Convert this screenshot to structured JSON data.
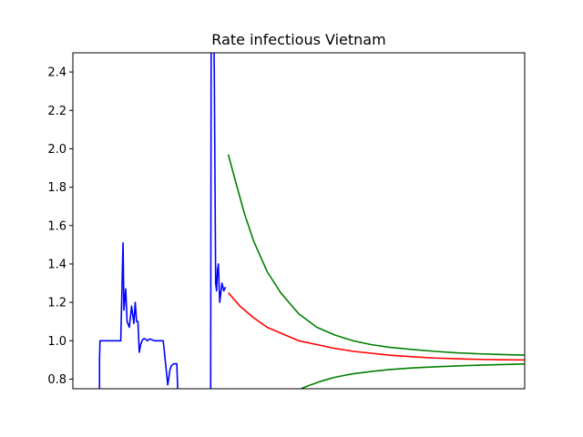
{
  "chart_data": {
    "type": "line",
    "title": "Rate infectious Vietnam",
    "xlabel": "",
    "ylabel": "",
    "xlim": [
      0,
      100
    ],
    "ylim": [
      0.75,
      2.5
    ],
    "yticks": [
      0.8,
      1.0,
      1.2,
      1.4,
      1.6,
      1.8,
      2.0,
      2.2,
      2.4
    ],
    "ytick_labels": [
      "0.8",
      "1.0",
      "1.2",
      "1.4",
      "1.6",
      "1.8",
      "2.0",
      "2.2",
      "2.4"
    ],
    "show_xticks": false,
    "grid": false,
    "legend": "none",
    "series": [
      {
        "color": "#0000ff",
        "x": [
          5.9,
          5.9,
          6.0,
          10.5,
          10.6,
          11.1,
          11.3,
          11.7,
          12.0,
          12.5,
          13.0,
          13.5,
          13.8,
          14.1,
          14.4,
          14.7,
          15.0,
          15.3,
          15.6,
          16.0,
          16.5,
          17.0,
          18.0,
          19.0,
          20.0,
          21.0,
          21.5,
          21.8,
          22.3,
          23.0,
          23.2
        ],
        "y": [
          0.75,
          0.9,
          1.0,
          1.0,
          1.0,
          1.51,
          1.16,
          1.27,
          1.1,
          1.07,
          1.18,
          1.09,
          1.2,
          1.1,
          1.1,
          0.94,
          0.98,
          1.0,
          1.01,
          1.01,
          1.0,
          1.01,
          1.0,
          1.0,
          1.0,
          0.77,
          0.85,
          0.87,
          0.88,
          0.88,
          0.75
        ]
      },
      {
        "color": "#0000ff",
        "x": [
          30.5,
          30.6,
          31.0,
          31.3,
          31.6,
          31.8,
          32.0,
          32.2,
          32.5,
          33.0,
          33.4,
          33.8
        ],
        "y": [
          0.75,
          2.5,
          3.0,
          2.4,
          1.3,
          1.26,
          1.37,
          1.4,
          1.2,
          1.3,
          1.26,
          1.28
        ]
      },
      {
        "color": "#ff0000",
        "x": [
          34.4,
          37,
          40,
          43,
          46,
          50,
          54,
          58,
          62,
          66,
          70,
          75,
          80,
          85,
          90,
          95,
          100
        ],
        "y": [
          1.25,
          1.18,
          1.12,
          1.07,
          1.04,
          1.0,
          0.98,
          0.96,
          0.945,
          0.935,
          0.925,
          0.917,
          0.91,
          0.906,
          0.903,
          0.901,
          0.9
        ]
      },
      {
        "color": "#008000",
        "x": [
          34.4,
          36,
          38,
          40,
          43,
          46,
          50,
          54,
          58,
          62,
          66,
          70,
          75,
          80,
          85,
          90,
          95,
          100
        ],
        "y": [
          1.97,
          1.83,
          1.66,
          1.52,
          1.36,
          1.25,
          1.14,
          1.07,
          1.03,
          1.0,
          0.98,
          0.966,
          0.955,
          0.945,
          0.937,
          0.932,
          0.928,
          0.925
        ]
      },
      {
        "color": "#008000",
        "x": [
          50.5,
          52,
          55,
          58,
          62,
          66,
          70,
          75,
          80,
          85,
          90,
          95,
          100
        ],
        "y": [
          0.75,
          0.765,
          0.79,
          0.81,
          0.828,
          0.84,
          0.85,
          0.858,
          0.864,
          0.869,
          0.873,
          0.876,
          0.879
        ]
      }
    ]
  }
}
